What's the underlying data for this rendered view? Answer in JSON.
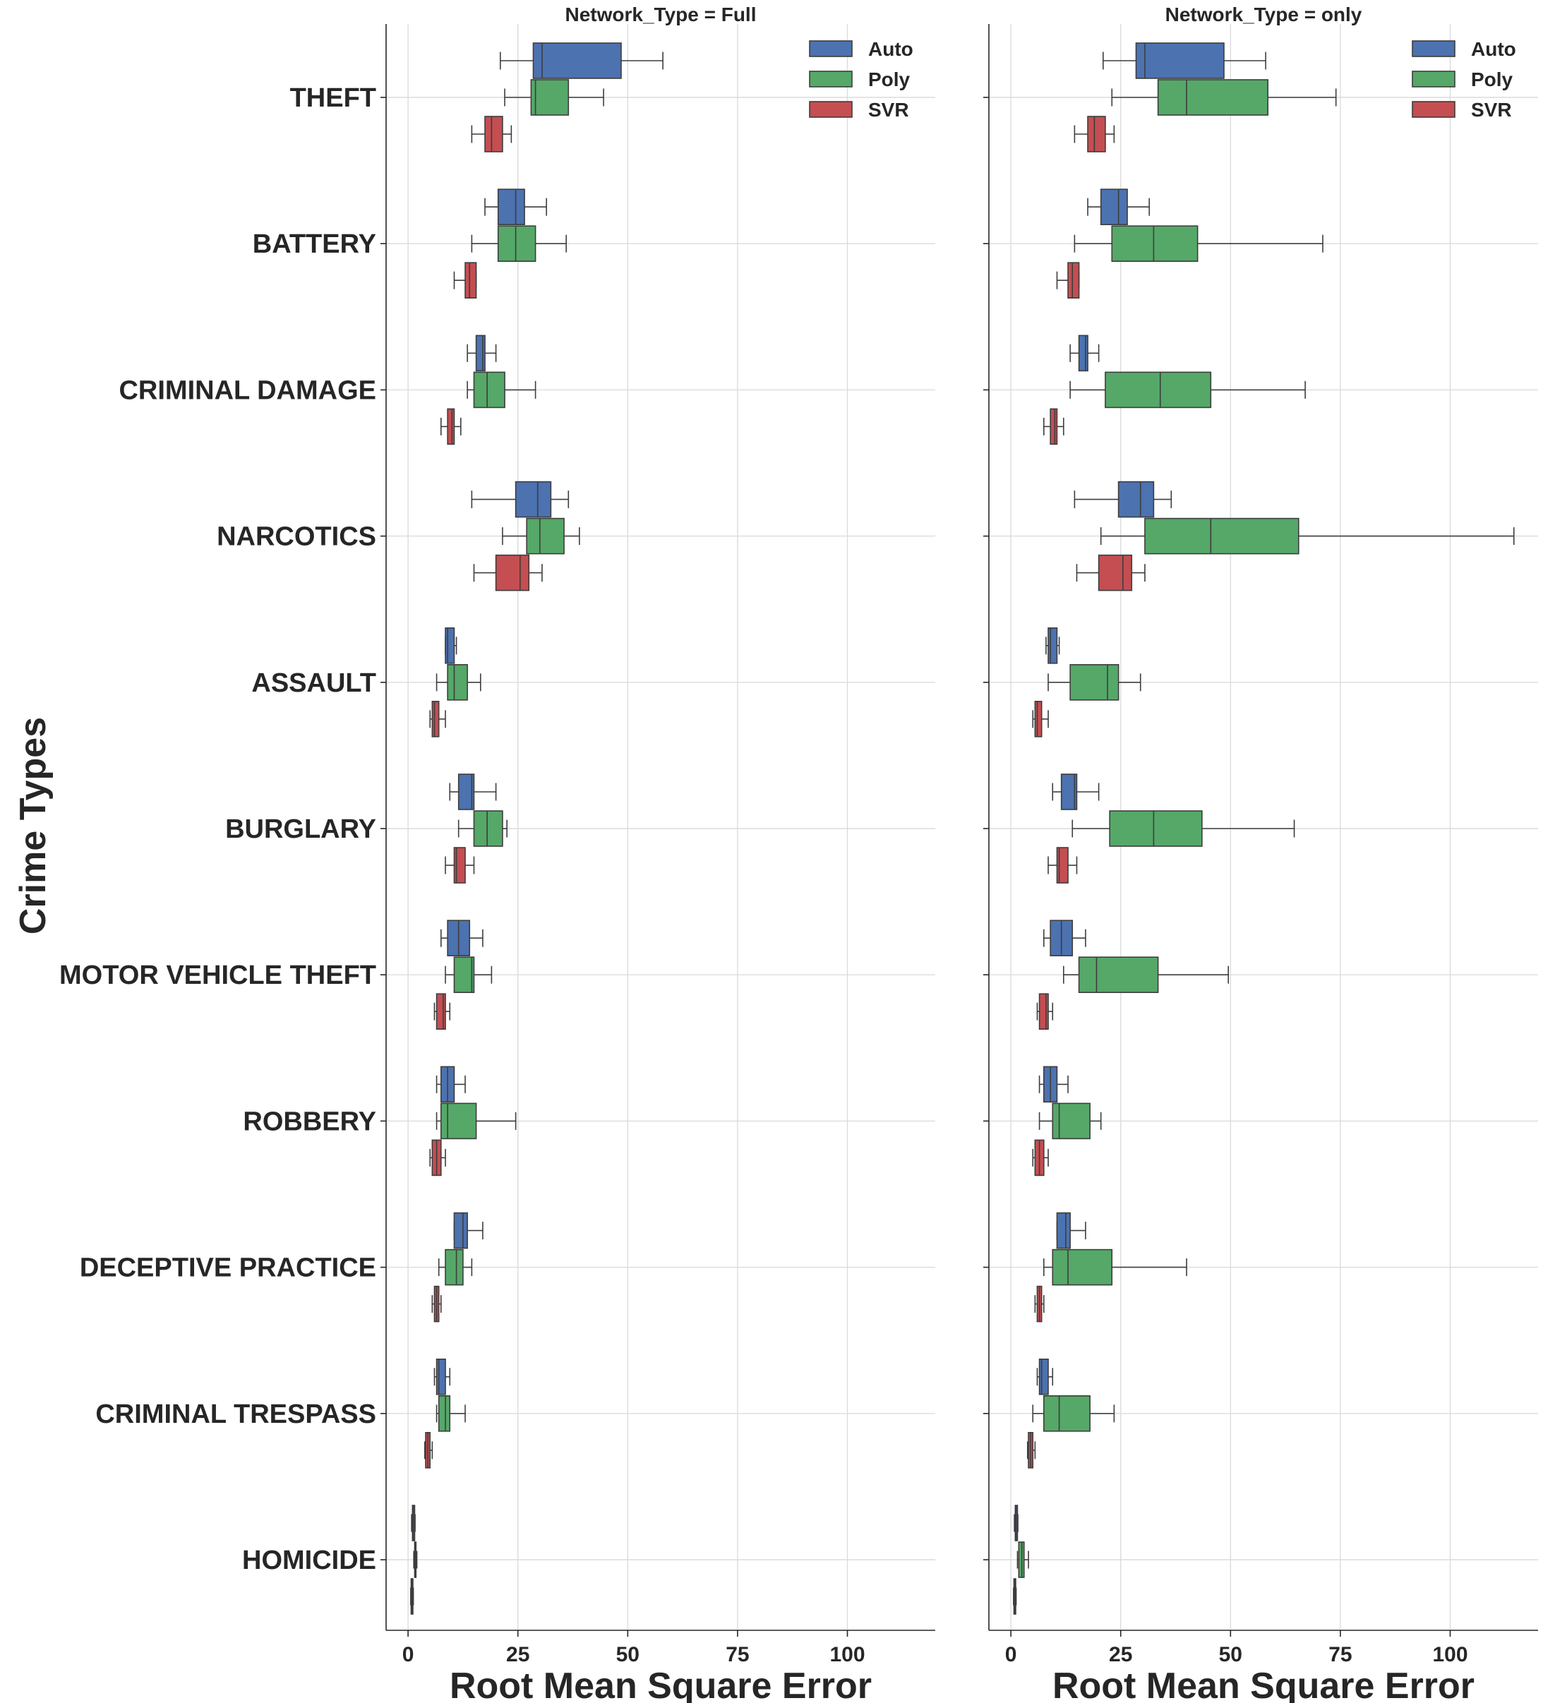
{
  "chart_data": {
    "type": "boxplot-horizontal",
    "ylabel": "Crime Types",
    "xlabel": "Root Mean Square Error",
    "xlim": [
      -5,
      120
    ],
    "xticks": [
      0,
      25,
      50,
      75,
      100
    ],
    "grid": true,
    "legend_position": "top-right",
    "series": [
      {
        "name": "Auto",
        "color": "#4c72b0"
      },
      {
        "name": "Poly",
        "color": "#55a868"
      },
      {
        "name": "SVR",
        "color": "#c44e52"
      }
    ],
    "categories": [
      "THEFT",
      "BATTERY",
      "CRIMINAL DAMAGE",
      "NARCOTICS",
      "ASSAULT",
      "BURGLARY",
      "MOTOR VEHICLE THEFT",
      "ROBBERY",
      "DECEPTIVE PRACTICE",
      "CRIMINAL TRESPASS",
      "HOMICIDE"
    ],
    "panels": [
      {
        "title": "Network_Type = Full",
        "boxes": {
          "Auto": [
            [
              21,
              28.5,
              30.5,
              48.5,
              58
            ],
            [
              17.5,
              20.5,
              24.5,
              26.5,
              31.5
            ],
            [
              13.5,
              15.5,
              17,
              17.5,
              20
            ],
            [
              14.5,
              24.5,
              29.5,
              32.5,
              36.5
            ],
            [
              8.5,
              8.5,
              9,
              10.5,
              11
            ],
            [
              9.5,
              11.5,
              14.5,
              15,
              20
            ],
            [
              7.5,
              9,
              11.5,
              14,
              17
            ],
            [
              6.5,
              7.5,
              9,
              10.5,
              13
            ],
            [
              10.5,
              10.5,
              12.5,
              13.5,
              17
            ],
            [
              6,
              6.5,
              7,
              8.5,
              9.5
            ],
            [
              0.8,
              1,
              1.2,
              1.5,
              1.6
            ]
          ],
          "Poly": [
            [
              22,
              28,
              29,
              36.5,
              44.5
            ],
            [
              14.5,
              20.5,
              24.5,
              29,
              36
            ],
            [
              13.5,
              15,
              18,
              22,
              29
            ],
            [
              21.5,
              27,
              30,
              35.5,
              39
            ],
            [
              6.5,
              9,
              10.5,
              13.5,
              16.5
            ],
            [
              11.5,
              15,
              18,
              21.5,
              22.5
            ],
            [
              8.5,
              10.5,
              14.5,
              15,
              19
            ],
            [
              6.5,
              7.5,
              9,
              15.5,
              24.5
            ],
            [
              7,
              8.5,
              11,
              12.5,
              14.5
            ],
            [
              6.5,
              7,
              8.5,
              9.5,
              13
            ],
            [
              1.3,
              1.5,
              1.7,
              1.8,
              2
            ]
          ],
          "SVR": [
            [
              14.5,
              17.5,
              19,
              21.5,
              23.5
            ],
            [
              10.5,
              13,
              14,
              15.5,
              15.5
            ],
            [
              7.5,
              9,
              10,
              10.5,
              12
            ],
            [
              15,
              20,
              25.5,
              27.5,
              30.5
            ],
            [
              5,
              5.5,
              6,
              7,
              8.5
            ],
            [
              8.5,
              10.5,
              11,
              13,
              15
            ],
            [
              6,
              6.5,
              8,
              8.5,
              9.5
            ],
            [
              5,
              5.5,
              6.5,
              7.5,
              8.5
            ],
            [
              5.5,
              6,
              6.5,
              7,
              7.5
            ],
            [
              3.8,
              4,
              4.5,
              5,
              5.5
            ],
            [
              0.6,
              0.7,
              0.9,
              1.1,
              1.2
            ]
          ]
        }
      },
      {
        "title": "Network_Type = only",
        "boxes": {
          "Auto": [
            [
              21,
              28.5,
              30.5,
              48.5,
              58
            ],
            [
              17.5,
              20.5,
              24.5,
              26.5,
              31.5
            ],
            [
              13.5,
              15.5,
              17,
              17.5,
              20
            ],
            [
              14.5,
              24.5,
              29.5,
              32.5,
              36.5
            ],
            [
              8,
              8.5,
              9,
              10.5,
              11
            ],
            [
              9.5,
              11.5,
              14.5,
              15,
              20
            ],
            [
              7.5,
              9,
              11.5,
              14,
              17
            ],
            [
              6.5,
              7.5,
              9,
              10.5,
              13
            ],
            [
              10.5,
              10.5,
              12.5,
              13.5,
              17
            ],
            [
              6,
              6.5,
              7,
              8.5,
              9.5
            ],
            [
              0.8,
              1,
              1.2,
              1.5,
              1.6
            ]
          ],
          "Poly": [
            [
              23,
              33.5,
              40,
              58.5,
              74
            ],
            [
              14.5,
              23,
              32.5,
              42.5,
              71
            ],
            [
              13.5,
              21.5,
              34,
              45.5,
              67
            ],
            [
              20.5,
              30.5,
              45.5,
              65.5,
              114.5
            ],
            [
              8.5,
              13.5,
              22,
              24.5,
              29.5
            ],
            [
              14,
              22.5,
              32.5,
              43.5,
              64.5
            ],
            [
              12,
              15.5,
              19.5,
              33.5,
              49.5
            ],
            [
              6.5,
              9.5,
              11,
              18,
              20.5
            ],
            [
              7.5,
              9.5,
              13,
              23,
              40
            ],
            [
              5,
              7.5,
              11,
              18,
              23.5
            ],
            [
              1.5,
              1.8,
              2.5,
              3,
              4
            ]
          ],
          "SVR": [
            [
              14.5,
              17.5,
              19,
              21.5,
              23.5
            ],
            [
              10.5,
              13,
              14,
              15.5,
              15.5
            ],
            [
              7.5,
              9,
              10,
              10.5,
              12
            ],
            [
              15,
              20,
              25.5,
              27.5,
              30.5
            ],
            [
              5,
              5.5,
              6,
              7,
              8.5
            ],
            [
              8.5,
              10.5,
              11,
              13,
              15
            ],
            [
              6,
              6.5,
              8,
              8.5,
              9.5
            ],
            [
              5,
              5.5,
              6.5,
              7.5,
              8.5
            ],
            [
              5.5,
              6,
              6.5,
              7,
              7.5
            ],
            [
              3.8,
              4,
              4.5,
              5,
              5.5
            ],
            [
              0.6,
              0.7,
              0.9,
              1.1,
              1.2
            ]
          ]
        }
      }
    ]
  }
}
